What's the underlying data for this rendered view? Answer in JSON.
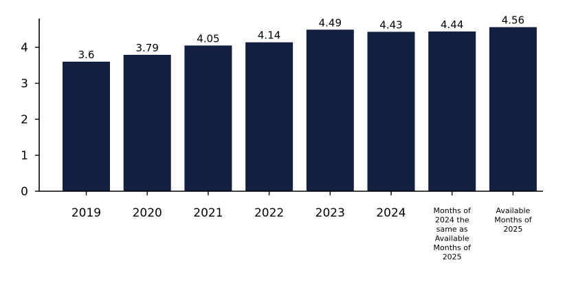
{
  "chart_data": {
    "type": "bar",
    "categories": [
      "2019",
      "2020",
      "2021",
      "2022",
      "2023",
      "2024",
      "Months of 2024 the same as Available Months of 2025",
      "Available Months of 2025"
    ],
    "category_lines": [
      [
        "2019"
      ],
      [
        "2020"
      ],
      [
        "2021"
      ],
      [
        "2022"
      ],
      [
        "2023"
      ],
      [
        "2024"
      ],
      [
        "Months of",
        "2024 the",
        "same as",
        "Available",
        "Months of",
        "2025"
      ],
      [
        "Available",
        "Months of",
        "2025"
      ]
    ],
    "values": [
      3.6,
      3.79,
      4.05,
      4.14,
      4.49,
      4.43,
      4.44,
      4.56
    ],
    "data_labels": [
      "3.6",
      "3.79",
      "4.05",
      "4.14",
      "4.49",
      "4.43",
      "4.44",
      "4.56"
    ],
    "yticks": [
      0,
      1,
      2,
      3,
      4
    ],
    "ylim": [
      0,
      4.8
    ],
    "title": "",
    "xlabel": "",
    "ylabel": "",
    "bar_color": "#132042",
    "grid": false,
    "legend": "none"
  }
}
